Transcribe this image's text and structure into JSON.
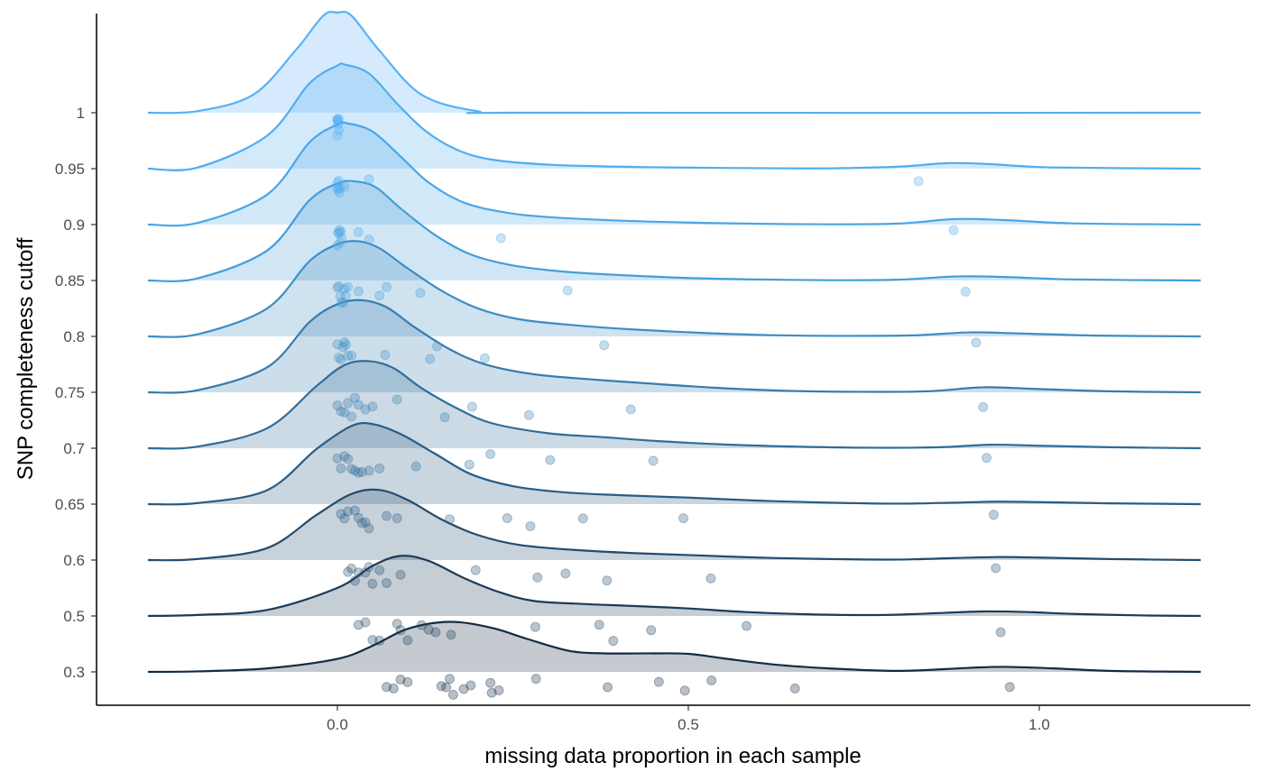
{
  "chart_data": {
    "type": "ridgeline",
    "title": "",
    "xlabel": "missing data proportion in each sample",
    "ylabel": "SNP completeness cutoff",
    "xlim": [
      -0.3456,
      1.3
    ],
    "xticks": [
      "0.0",
      "0.5",
      "1.0"
    ],
    "xtick_values": [
      0,
      0.5,
      1.0
    ],
    "grid": false,
    "legend": "none",
    "colors": {
      "ridge_light": "#56B1F7",
      "ridge_dark": "#132B43",
      "axis": "#000000",
      "tick_text": "#4d4d4d"
    },
    "series": [
      {
        "label": "0.3",
        "color": "#132B43",
        "curve": [
          [
            -0.27,
            0
          ],
          [
            -0.2,
            0.005
          ],
          [
            -0.1,
            0.035
          ],
          [
            0,
            0.13
          ],
          [
            0.05,
            0.26
          ],
          [
            0.1,
            0.43
          ],
          [
            0.16,
            0.5
          ],
          [
            0.22,
            0.44
          ],
          [
            0.27,
            0.33
          ],
          [
            0.33,
            0.21
          ],
          [
            0.38,
            0.185
          ],
          [
            0.45,
            0.185
          ],
          [
            0.5,
            0.18
          ],
          [
            0.55,
            0.135
          ],
          [
            0.62,
            0.075
          ],
          [
            0.7,
            0.035
          ],
          [
            0.8,
            0.01
          ],
          [
            0.9,
            0.04
          ],
          [
            0.95,
            0.05
          ],
          [
            1.02,
            0.035
          ],
          [
            1.1,
            0.01
          ],
          [
            1.2,
            0.002
          ],
          [
            1.23,
            0
          ]
        ],
        "points": [
          0.07,
          0.08,
          0.09,
          0.1,
          0.148,
          0.155,
          0.16,
          0.165,
          0.18,
          0.19,
          0.218,
          0.22,
          0.23,
          0.283,
          0.385,
          0.458,
          0.495,
          0.533,
          0.652,
          0.958
        ]
      },
      {
        "label": "0.5",
        "color": "#1B3B59",
        "curve": [
          [
            -0.27,
            0
          ],
          [
            -0.2,
            0.01
          ],
          [
            -0.1,
            0.06
          ],
          [
            0,
            0.28
          ],
          [
            0.05,
            0.5
          ],
          [
            0.09,
            0.6
          ],
          [
            0.13,
            0.55
          ],
          [
            0.18,
            0.38
          ],
          [
            0.23,
            0.24
          ],
          [
            0.28,
            0.15
          ],
          [
            0.35,
            0.12
          ],
          [
            0.42,
            0.1
          ],
          [
            0.5,
            0.075
          ],
          [
            0.58,
            0.04
          ],
          [
            0.68,
            0.015
          ],
          [
            0.78,
            0.01
          ],
          [
            0.86,
            0.03
          ],
          [
            0.92,
            0.045
          ],
          [
            0.98,
            0.04
          ],
          [
            1.05,
            0.02
          ],
          [
            1.15,
            0.005
          ],
          [
            1.23,
            0
          ]
        ],
        "points": [
          0.03,
          0.04,
          0.05,
          0.06,
          0.085,
          0.09,
          0.1,
          0.12,
          0.13,
          0.14,
          0.162,
          0.282,
          0.373,
          0.393,
          0.447,
          0.583,
          0.945
        ]
      },
      {
        "label": "0.6",
        "color": "#224C6F",
        "curve": [
          [
            -0.27,
            0
          ],
          [
            -0.2,
            0.01
          ],
          [
            -0.1,
            0.12
          ],
          [
            -0.03,
            0.45
          ],
          [
            0.02,
            0.66
          ],
          [
            0.06,
            0.7
          ],
          [
            0.1,
            0.6
          ],
          [
            0.15,
            0.4
          ],
          [
            0.2,
            0.25
          ],
          [
            0.26,
            0.15
          ],
          [
            0.34,
            0.1
          ],
          [
            0.42,
            0.07
          ],
          [
            0.5,
            0.05
          ],
          [
            0.6,
            0.025
          ],
          [
            0.7,
            0.01
          ],
          [
            0.8,
            0.005
          ],
          [
            0.88,
            0.02
          ],
          [
            0.94,
            0.03
          ],
          [
            1.0,
            0.025
          ],
          [
            1.1,
            0.01
          ],
          [
            1.23,
            0
          ]
        ],
        "points": [
          0.015,
          0.02,
          0.025,
          0.03,
          0.04,
          0.045,
          0.05,
          0.06,
          0.07,
          0.09,
          0.197,
          0.285,
          0.325,
          0.384,
          0.532,
          0.938
        ]
      },
      {
        "label": "0.65",
        "color": "#295C84",
        "curve": [
          [
            -0.27,
            0
          ],
          [
            -0.2,
            0.01
          ],
          [
            -0.1,
            0.14
          ],
          [
            -0.03,
            0.55
          ],
          [
            0.02,
            0.78
          ],
          [
            0.05,
            0.8
          ],
          [
            0.09,
            0.7
          ],
          [
            0.14,
            0.5
          ],
          [
            0.19,
            0.3
          ],
          [
            0.25,
            0.18
          ],
          [
            0.32,
            0.12
          ],
          [
            0.4,
            0.09
          ],
          [
            0.5,
            0.065
          ],
          [
            0.6,
            0.035
          ],
          [
            0.7,
            0.015
          ],
          [
            0.8,
            0.005
          ],
          [
            0.88,
            0.015
          ],
          [
            0.94,
            0.025
          ],
          [
            1.0,
            0.02
          ],
          [
            1.1,
            0.008
          ],
          [
            1.23,
            0
          ]
        ],
        "points": [
          0.005,
          0.01,
          0.015,
          0.025,
          0.03,
          0.035,
          0.04,
          0.045,
          0.07,
          0.085,
          0.16,
          0.242,
          0.275,
          0.35,
          0.493,
          0.935
        ]
      },
      {
        "label": "0.7",
        "color": "#306C99",
        "curve": [
          [
            -0.27,
            0
          ],
          [
            -0.2,
            0.015
          ],
          [
            -0.1,
            0.2
          ],
          [
            -0.03,
            0.62
          ],
          [
            0.01,
            0.83
          ],
          [
            0.045,
            0.87
          ],
          [
            0.08,
            0.8
          ],
          [
            0.12,
            0.6
          ],
          [
            0.17,
            0.4
          ],
          [
            0.22,
            0.25
          ],
          [
            0.3,
            0.15
          ],
          [
            0.38,
            0.11
          ],
          [
            0.46,
            0.07
          ],
          [
            0.56,
            0.035
          ],
          [
            0.66,
            0.015
          ],
          [
            0.76,
            0.005
          ],
          [
            0.86,
            0.01
          ],
          [
            0.93,
            0.035
          ],
          [
            1.0,
            0.025
          ],
          [
            1.1,
            0.01
          ],
          [
            1.23,
            0
          ]
        ],
        "points": [
          0.0,
          0.005,
          0.01,
          0.015,
          0.02,
          0.025,
          0.03,
          0.035,
          0.045,
          0.06,
          0.112,
          0.188,
          0.218,
          0.303,
          0.45,
          0.925
        ]
      },
      {
        "label": "0.75",
        "color": "#377CAE",
        "curve": [
          [
            -0.27,
            0
          ],
          [
            -0.2,
            0.02
          ],
          [
            -0.1,
            0.25
          ],
          [
            -0.04,
            0.7
          ],
          [
            0.0,
            0.88
          ],
          [
            0.035,
            0.92
          ],
          [
            0.07,
            0.85
          ],
          [
            0.11,
            0.65
          ],
          [
            0.16,
            0.43
          ],
          [
            0.21,
            0.28
          ],
          [
            0.28,
            0.18
          ],
          [
            0.36,
            0.13
          ],
          [
            0.44,
            0.09
          ],
          [
            0.54,
            0.045
          ],
          [
            0.64,
            0.015
          ],
          [
            0.74,
            0.005
          ],
          [
            0.84,
            0.01
          ],
          [
            0.92,
            0.05
          ],
          [
            0.99,
            0.035
          ],
          [
            1.1,
            0.01
          ],
          [
            1.23,
            0
          ]
        ],
        "points": [
          0.0,
          0.005,
          0.01,
          0.015,
          0.02,
          0.025,
          0.03,
          0.04,
          0.05,
          0.085,
          0.153,
          0.192,
          0.273,
          0.418,
          0.92
        ]
      },
      {
        "label": "0.8",
        "color": "#3E8DC3",
        "curve": [
          [
            -0.27,
            0
          ],
          [
            -0.2,
            0.02
          ],
          [
            -0.1,
            0.28
          ],
          [
            -0.04,
            0.75
          ],
          [
            0.0,
            0.92
          ],
          [
            0.03,
            0.95
          ],
          [
            0.06,
            0.88
          ],
          [
            0.1,
            0.68
          ],
          [
            0.15,
            0.45
          ],
          [
            0.2,
            0.28
          ],
          [
            0.26,
            0.17
          ],
          [
            0.34,
            0.11
          ],
          [
            0.42,
            0.07
          ],
          [
            0.52,
            0.035
          ],
          [
            0.62,
            0.012
          ],
          [
            0.72,
            0.005
          ],
          [
            0.82,
            0.01
          ],
          [
            0.9,
            0.04
          ],
          [
            0.97,
            0.03
          ],
          [
            1.08,
            0.008
          ],
          [
            1.23,
            0
          ]
        ],
        "points": [
          0.0,
          0.002,
          0.005,
          0.008,
          0.01,
          0.012,
          0.015,
          0.02,
          0.068,
          0.132,
          0.142,
          0.21,
          0.38,
          0.91
        ]
      },
      {
        "label": "0.85",
        "color": "#459DD8",
        "curve": [
          [
            -0.27,
            0
          ],
          [
            -0.2,
            0.02
          ],
          [
            -0.1,
            0.3
          ],
          [
            -0.04,
            0.8
          ],
          [
            0.0,
            0.97
          ],
          [
            0.025,
            0.99
          ],
          [
            0.055,
            0.93
          ],
          [
            0.09,
            0.72
          ],
          [
            0.14,
            0.45
          ],
          [
            0.19,
            0.26
          ],
          [
            0.25,
            0.15
          ],
          [
            0.32,
            0.09
          ],
          [
            0.4,
            0.055
          ],
          [
            0.5,
            0.025
          ],
          [
            0.6,
            0.01
          ],
          [
            0.7,
            0.003
          ],
          [
            0.8,
            0.008
          ],
          [
            0.88,
            0.04
          ],
          [
            0.95,
            0.035
          ],
          [
            1.05,
            0.01
          ],
          [
            1.23,
            0
          ]
        ],
        "points": [
          0.0,
          0.002,
          0.004,
          0.006,
          0.008,
          0.01,
          0.012,
          0.015,
          0.03,
          0.06,
          0.07,
          0.118,
          0.328,
          0.895
        ]
      },
      {
        "label": "0.9",
        "color": "#4BA6E6",
        "curve": [
          [
            -0.27,
            0
          ],
          [
            -0.2,
            0.015
          ],
          [
            -0.1,
            0.3
          ],
          [
            -0.04,
            0.82
          ],
          [
            0.0,
            1.0
          ],
          [
            0.015,
            1.01
          ],
          [
            0.05,
            0.93
          ],
          [
            0.09,
            0.68
          ],
          [
            0.13,
            0.42
          ],
          [
            0.18,
            0.22
          ],
          [
            0.24,
            0.12
          ],
          [
            0.3,
            0.075
          ],
          [
            0.4,
            0.04
          ],
          [
            0.5,
            0.02
          ],
          [
            0.6,
            0.008
          ],
          [
            0.7,
            0.003
          ],
          [
            0.8,
            0.01
          ],
          [
            0.88,
            0.055
          ],
          [
            0.95,
            0.045
          ],
          [
            1.05,
            0.012
          ],
          [
            1.23,
            0
          ]
        ],
        "points": [
          0.0,
          0.001,
          0.002,
          0.003,
          0.004,
          0.005,
          0.006,
          0.03,
          0.045,
          0.233,
          0.878
        ]
      },
      {
        "label": "0.95",
        "color": "#51ADEF",
        "curve": [
          [
            -0.27,
            0
          ],
          [
            -0.2,
            0.01
          ],
          [
            -0.1,
            0.33
          ],
          [
            -0.04,
            0.85
          ],
          [
            0.0,
            1.03
          ],
          [
            0.01,
            1.04
          ],
          [
            0.045,
            0.95
          ],
          [
            0.085,
            0.65
          ],
          [
            0.125,
            0.38
          ],
          [
            0.17,
            0.19
          ],
          [
            0.22,
            0.09
          ],
          [
            0.3,
            0.04
          ],
          [
            0.4,
            0.02
          ],
          [
            0.5,
            0.01
          ],
          [
            0.6,
            0.005
          ],
          [
            0.7,
            0.003
          ],
          [
            0.8,
            0.02
          ],
          [
            0.87,
            0.055
          ],
          [
            0.93,
            0.045
          ],
          [
            1.02,
            0.012
          ],
          [
            1.23,
            0
          ]
        ],
        "points": [
          0.0,
          0.0,
          0.001,
          0.002,
          0.003,
          0.004,
          0.01,
          0.045,
          0.828
        ]
      },
      {
        "label": "1",
        "color": "#56B1F7",
        "curve": [
          [
            -0.27,
            0
          ],
          [
            -0.2,
            0.015
          ],
          [
            -0.12,
            0.18
          ],
          [
            -0.06,
            0.62
          ],
          [
            -0.02,
            0.97
          ],
          [
            0.0,
            1.0
          ],
          [
            0.02,
            0.97
          ],
          [
            0.06,
            0.62
          ],
          [
            0.12,
            0.18
          ],
          [
            0.2,
            0.015
          ],
          [
            0.28,
            0
          ],
          [
            1.23,
            0
          ]
        ],
        "points": [
          0.0,
          0.0,
          0.0,
          0.0,
          0.001,
          0.001,
          0.002,
          0.002
        ]
      }
    ]
  }
}
